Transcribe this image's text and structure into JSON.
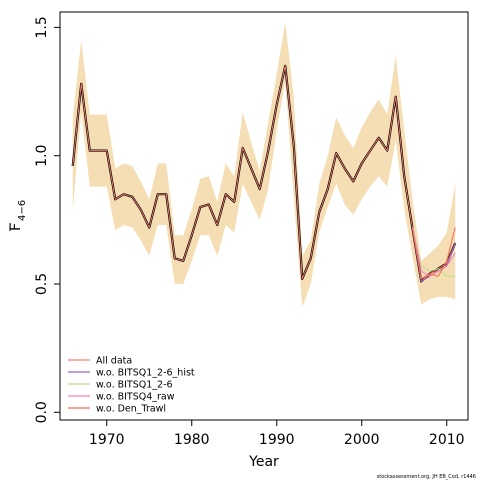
{
  "chart_data": {
    "type": "line",
    "xlabel": "Year",
    "ylabel_main": "F",
    "ylabel_sub": "4−6",
    "xlim": [
      1964.5,
      2012.5
    ],
    "ylim": [
      -0.03,
      1.56
    ],
    "xticks": [
      1970,
      1980,
      1990,
      2000,
      2010
    ],
    "yticks": [
      0.0,
      0.5,
      1.0,
      1.5
    ],
    "ytick_labels": [
      "0.0",
      "0.5",
      "1.0",
      "1.5"
    ],
    "grid": false,
    "legend_position": "bottom-left",
    "credit": "stockassessment.org, JH  EB_Cod, r1446",
    "colors": {
      "band": "#f5deb3",
      "base_line": "#000000"
    },
    "years": [
      1966,
      1967,
      1968,
      1969,
      1970,
      1971,
      1972,
      1973,
      1974,
      1975,
      1976,
      1977,
      1978,
      1979,
      1980,
      1981,
      1982,
      1983,
      1984,
      1985,
      1986,
      1987,
      1988,
      1989,
      1990,
      1991,
      1992,
      1993,
      1994,
      1995,
      1996,
      1997,
      1998,
      1999,
      2000,
      2001,
      2002,
      2003,
      2004,
      2005,
      2006,
      2007,
      2008,
      2009,
      2010,
      2011
    ],
    "band_upper": [
      1.15,
      1.45,
      1.16,
      1.16,
      1.16,
      0.95,
      0.97,
      0.96,
      0.9,
      0.83,
      0.97,
      0.97,
      0.69,
      0.69,
      0.79,
      0.91,
      0.92,
      0.82,
      0.97,
      0.92,
      1.17,
      1.05,
      0.94,
      1.13,
      1.32,
      1.52,
      1.23,
      0.61,
      0.67,
      0.89,
      1.0,
      1.15,
      1.08,
      1.03,
      1.11,
      1.17,
      1.22,
      1.16,
      1.39,
      1.1,
      0.82,
      0.59,
      0.62,
      0.65,
      0.7,
      0.89
    ],
    "band_lower": [
      0.79,
      1.17,
      0.88,
      0.88,
      0.88,
      0.71,
      0.73,
      0.72,
      0.67,
      0.61,
      0.73,
      0.73,
      0.5,
      0.5,
      0.59,
      0.69,
      0.69,
      0.61,
      0.73,
      0.7,
      0.89,
      0.82,
      0.75,
      0.87,
      1.1,
      1.29,
      0.84,
      0.41,
      0.5,
      0.7,
      0.8,
      0.89,
      0.81,
      0.77,
      0.83,
      0.88,
      0.92,
      0.88,
      1.06,
      0.79,
      0.6,
      0.42,
      0.44,
      0.45,
      0.45,
      0.44
    ],
    "base": [
      0.96,
      1.28,
      1.02,
      1.02,
      1.02,
      0.83,
      0.85,
      0.84,
      0.79,
      0.72,
      0.85,
      0.85,
      0.6,
      0.59,
      0.69,
      0.8,
      0.81,
      0.73,
      0.85,
      0.82,
      1.03,
      0.95,
      0.87,
      1.02,
      1.2,
      1.35,
      1.04,
      0.52,
      0.6,
      0.78,
      0.87,
      1.01,
      0.95,
      0.9,
      0.97,
      1.02,
      1.07,
      1.02,
      1.23,
      0.92,
      0.71,
      0.51,
      0.54,
      0.56,
      0.58,
      0.66
    ],
    "series": [
      {
        "name": "All data",
        "color": "#fb8072",
        "x": [
          2006,
          2007,
          2008,
          2009,
          2010,
          2011
        ],
        "values": [
          0.71,
          0.51,
          0.54,
          0.55,
          0.57,
          0.66
        ]
      },
      {
        "name": "w.o. BITSQ1_2-6_hist",
        "color": "#9467bd",
        "x": [
          2006,
          2007,
          2008,
          2009,
          2010,
          2011
        ],
        "values": [
          0.71,
          0.51,
          0.53,
          0.55,
          0.57,
          0.66
        ]
      },
      {
        "name": "w.o. BITSQ1_2-6",
        "color": "#b8e186",
        "x": [
          2006,
          2007,
          2008,
          2009,
          2010,
          2011
        ],
        "values": [
          0.72,
          0.57,
          0.55,
          0.56,
          0.53,
          0.53
        ]
      },
      {
        "name": "w.o. BITSQ4_raw",
        "color": "#f781bf",
        "x": [
          2006,
          2007,
          2008,
          2009,
          2010,
          2011
        ],
        "values": [
          0.72,
          0.55,
          0.53,
          0.55,
          0.57,
          0.62
        ]
      },
      {
        "name": "w.o. Den_Trawl",
        "color": "#fb6a4a",
        "x": [
          2006,
          2007,
          2008,
          2009,
          2010,
          2011
        ],
        "values": [
          0.71,
          0.52,
          0.54,
          0.53,
          0.59,
          0.72
        ]
      }
    ]
  }
}
